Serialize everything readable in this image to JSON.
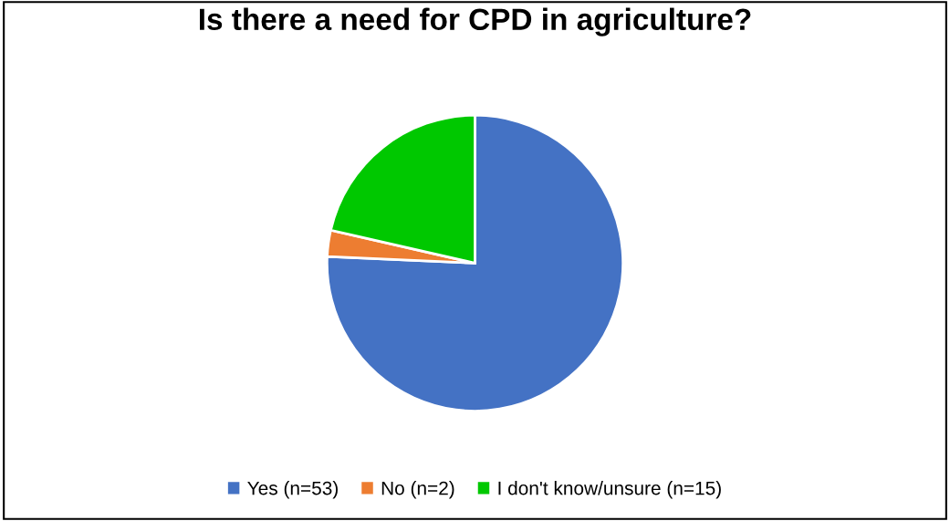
{
  "chart_data": {
    "type": "pie",
    "title": "Is there a need for CPD in agriculture?",
    "categories": [
      "Yes (n=53)",
      "No (n=2)",
      "I don't know/unsure (n=15)"
    ],
    "values": [
      53,
      2,
      15
    ],
    "colors": [
      "#4472c4",
      "#ed7d31",
      "#00c800"
    ],
    "legend": "bottom"
  }
}
